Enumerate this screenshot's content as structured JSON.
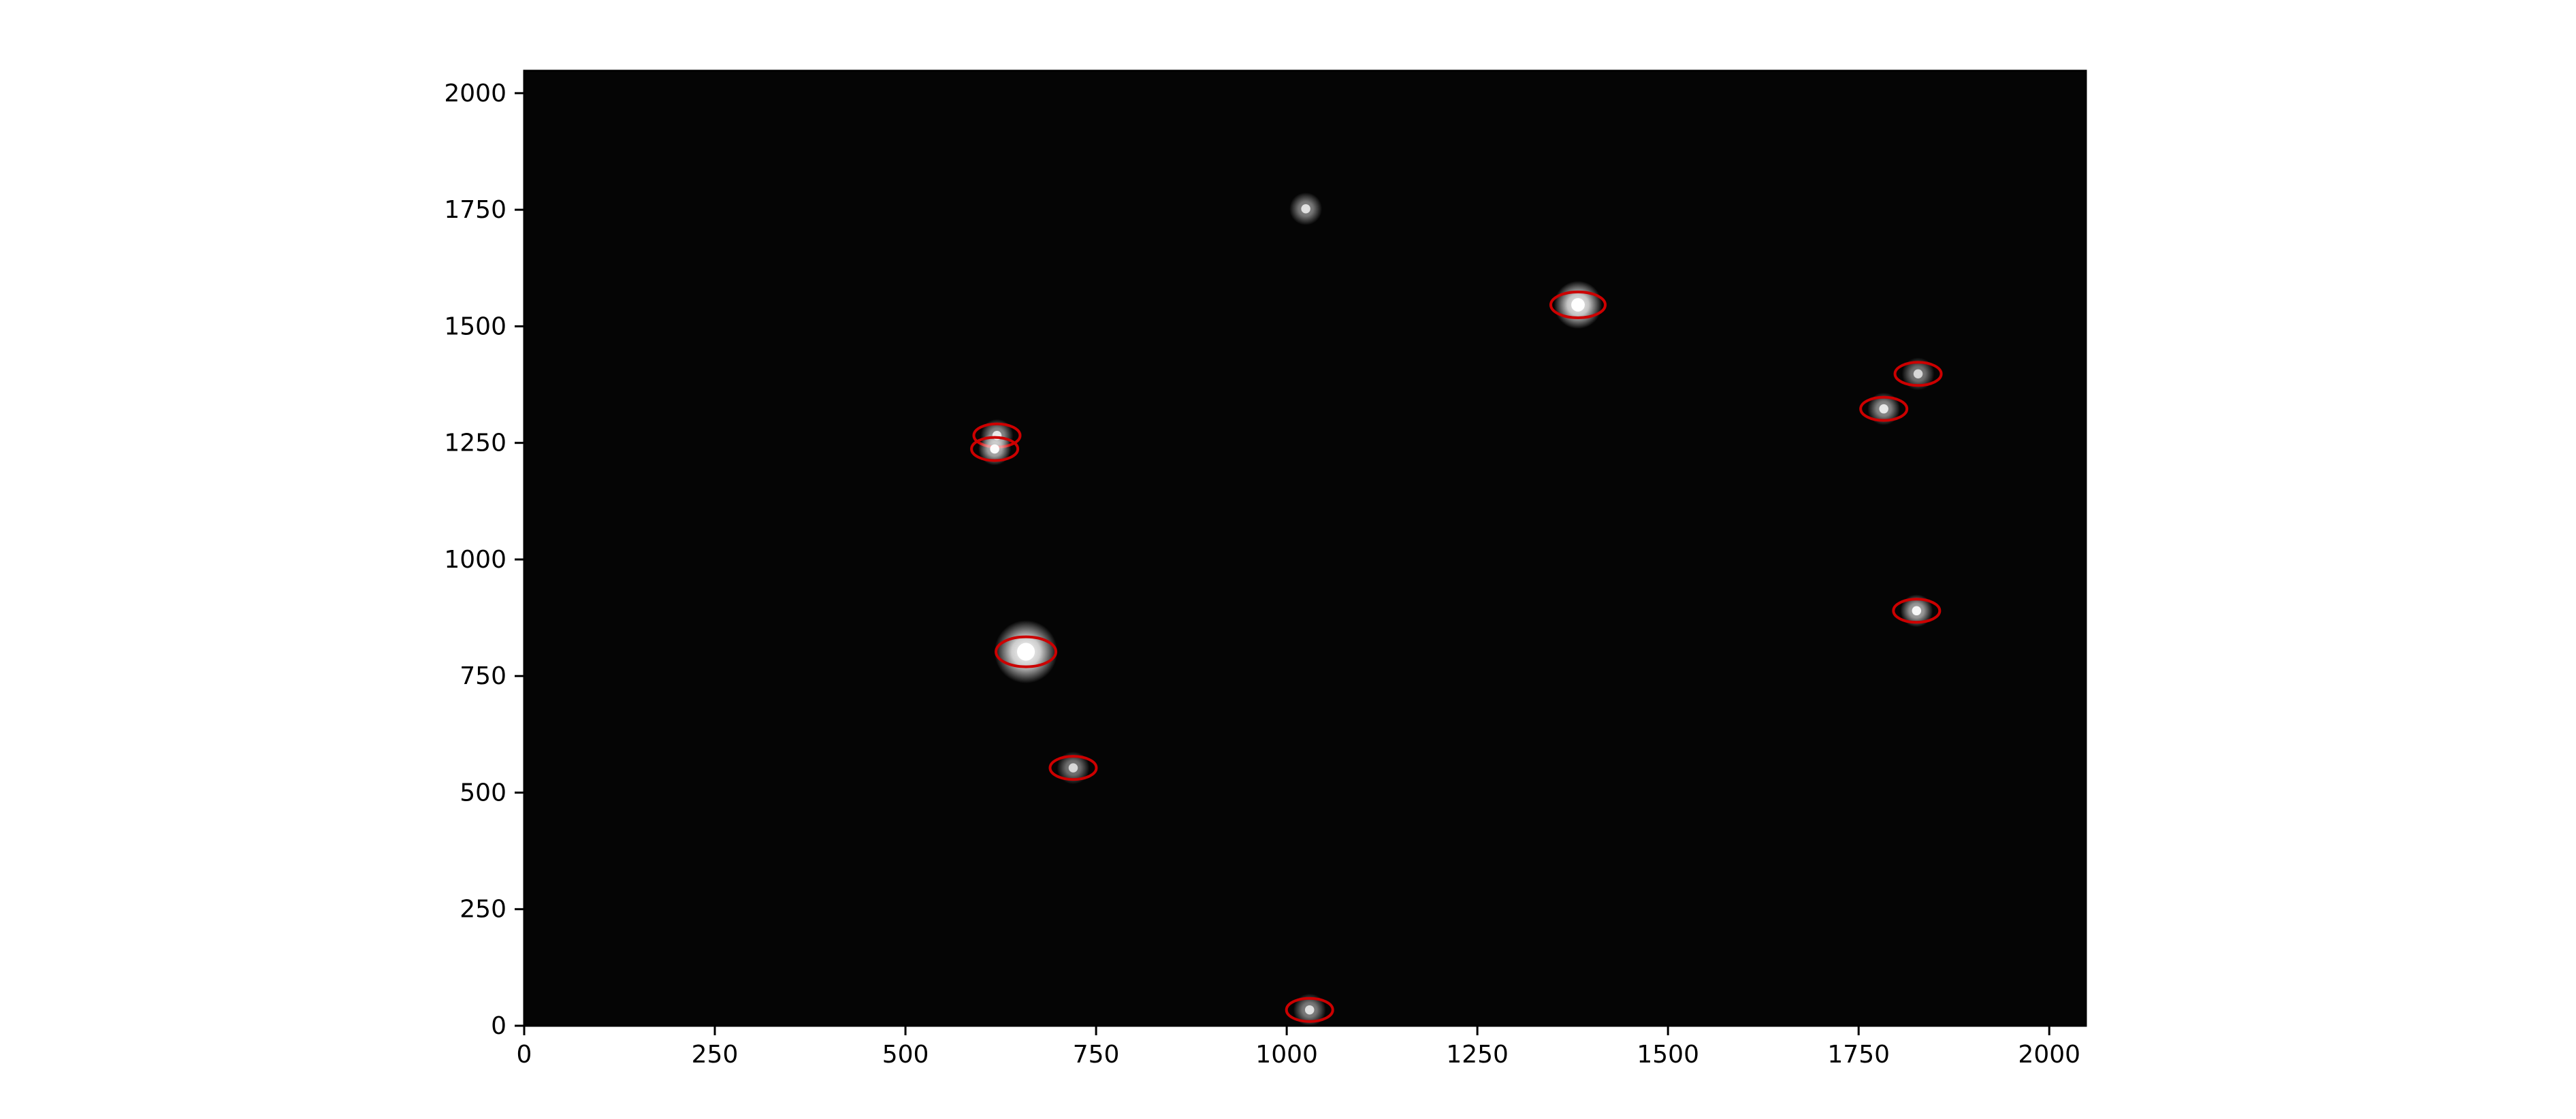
{
  "chart_data": {
    "type": "scatter",
    "title": "",
    "xlabel": "",
    "ylabel": "",
    "xlim": [
      0,
      2048
    ],
    "ylim": [
      0,
      2048
    ],
    "x_ticks": [
      0,
      250,
      500,
      750,
      1000,
      1250,
      1500,
      1750,
      2000
    ],
    "y_ticks": [
      0,
      250,
      500,
      750,
      1000,
      1250,
      1500,
      1750,
      2000
    ],
    "x_tick_labels": [
      "0",
      "250",
      "500",
      "750",
      "1000",
      "1250",
      "1500",
      "1750",
      "2000"
    ],
    "y_tick_labels": [
      "0",
      "250",
      "500",
      "750",
      "1000",
      "1250",
      "1500",
      "1750",
      "2000"
    ],
    "grid": false,
    "background_color": "#050505",
    "marker_color": "#cc0000",
    "star_color": "#ffffff",
    "detected_sources": [
      {
        "x": 658,
        "y": 802,
        "brightness": 1.0,
        "size": 3
      },
      {
        "x": 1382,
        "y": 1546,
        "brightness": 0.95,
        "size": 2
      },
      {
        "x": 620,
        "y": 1266,
        "brightness": 0.6,
        "size": 1
      },
      {
        "x": 617,
        "y": 1237,
        "brightness": 0.75,
        "size": 1
      },
      {
        "x": 720,
        "y": 553,
        "brightness": 0.5,
        "size": 1
      },
      {
        "x": 1030,
        "y": 34,
        "brightness": 0.55,
        "size": 1
      },
      {
        "x": 1783,
        "y": 1323,
        "brightness": 0.6,
        "size": 1
      },
      {
        "x": 1828,
        "y": 1398,
        "brightness": 0.5,
        "size": 1
      },
      {
        "x": 1826,
        "y": 890,
        "brightness": 0.7,
        "size": 1
      }
    ],
    "undetected_sources": [
      {
        "x": 1025,
        "y": 1752,
        "brightness": 0.55,
        "size": 1
      }
    ]
  }
}
